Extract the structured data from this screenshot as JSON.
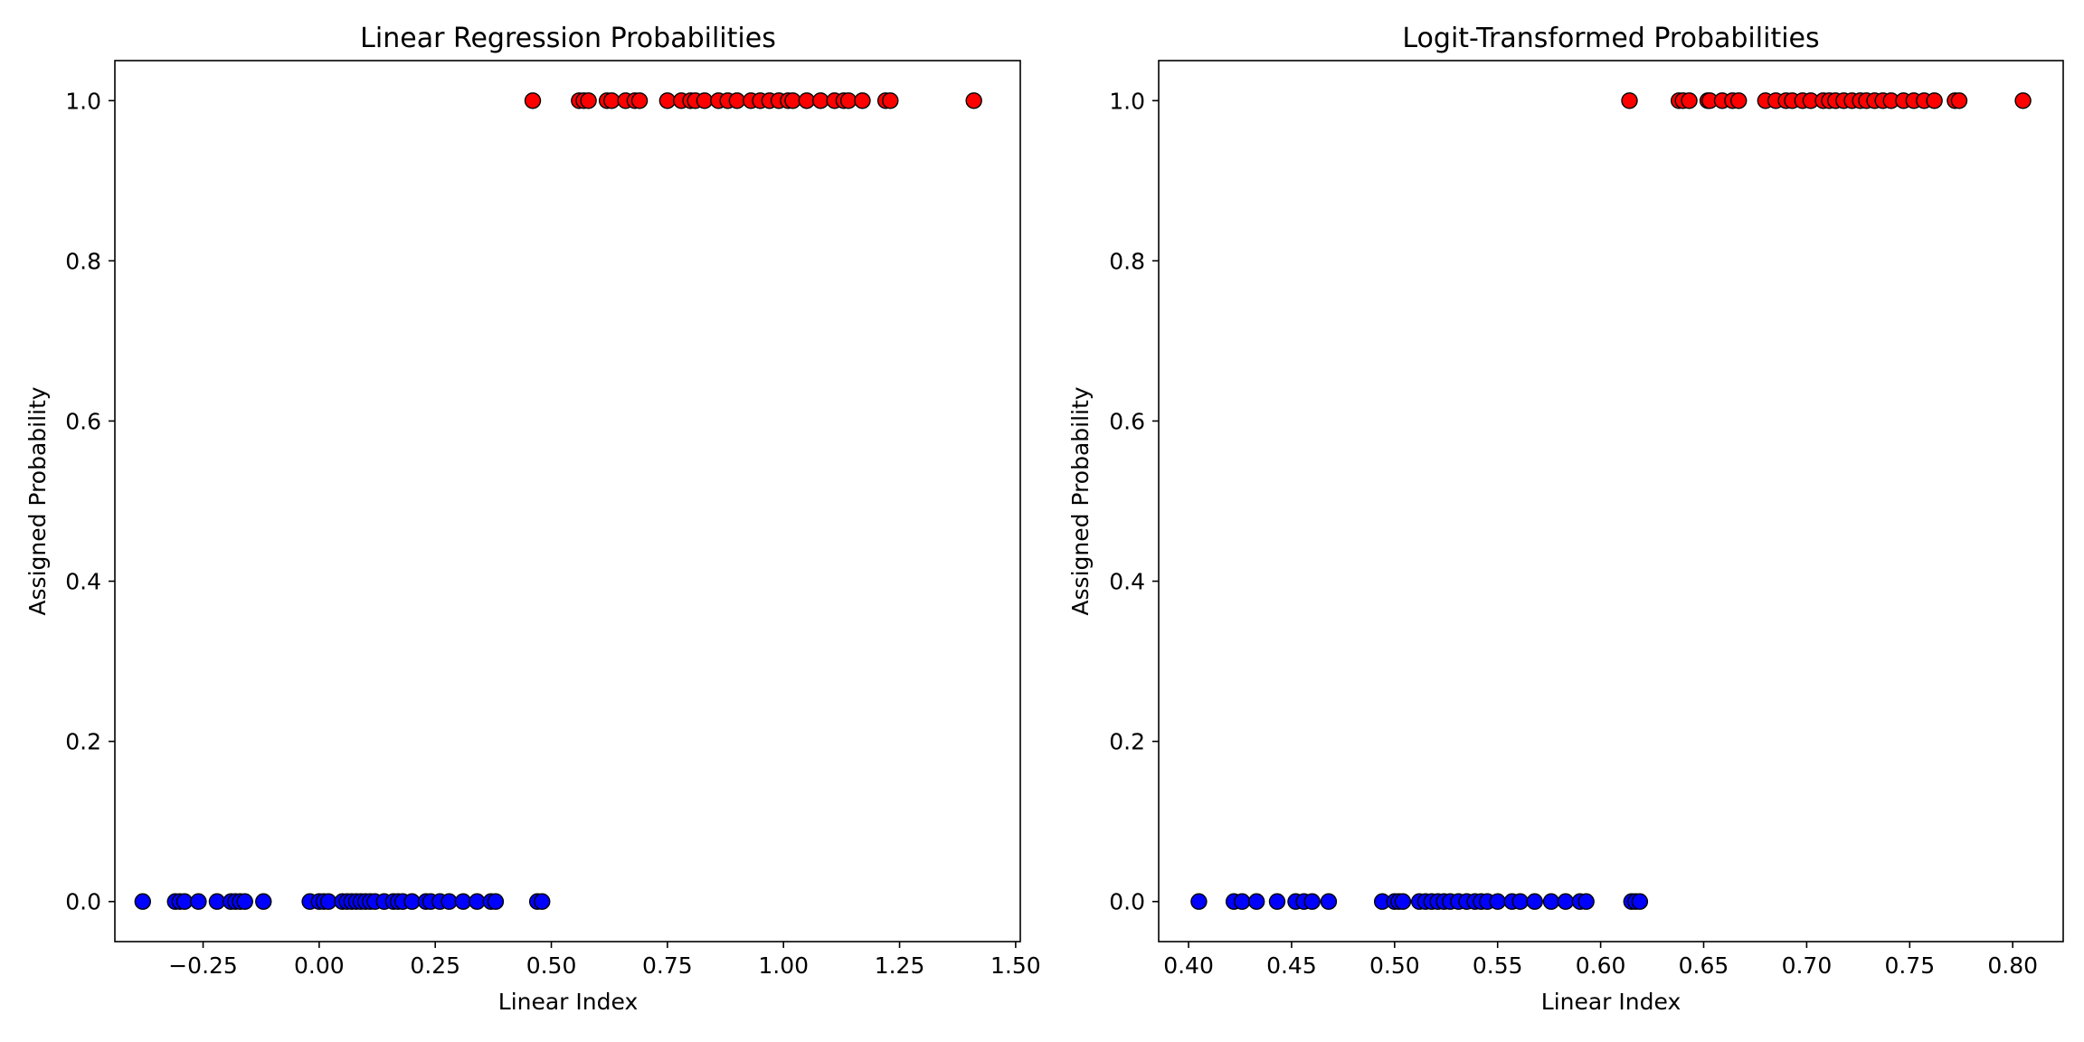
{
  "chart_data": [
    {
      "type": "scatter",
      "title": "Linear Regression Probabilities",
      "xlabel": "Linear Index",
      "ylabel": "Assigned Probability",
      "xlim": [
        -0.44,
        1.51
      ],
      "ylim": [
        -0.05,
        1.05
      ],
      "xticks": [
        -0.25,
        0.0,
        0.25,
        0.5,
        0.75,
        1.0,
        1.25,
        1.5
      ],
      "xtick_labels": [
        "−0.25",
        "0.00",
        "0.25",
        "0.50",
        "0.75",
        "1.00",
        "1.25",
        "1.50"
      ],
      "yticks": [
        0.0,
        0.2,
        0.4,
        0.6,
        0.8,
        1.0
      ],
      "ytick_labels": [
        "0.0",
        "0.2",
        "0.4",
        "0.6",
        "0.8",
        "1.0"
      ],
      "grid": false,
      "colors": {
        "class_0": "#0000ff",
        "class_1": "#ff0000",
        "edge": "#000000"
      },
      "series": [
        {
          "y": 0,
          "x": [
            -0.38,
            -0.31,
            -0.3,
            -0.29,
            -0.26,
            -0.22,
            -0.19,
            -0.18,
            -0.17,
            -0.16,
            -0.12,
            -0.02,
            0.0,
            0.01,
            0.02,
            0.05,
            0.06,
            0.07,
            0.08,
            0.09,
            0.1,
            0.11,
            0.12,
            0.14,
            0.16,
            0.17,
            0.18,
            0.2,
            0.23,
            0.24,
            0.26,
            0.28,
            0.31,
            0.34,
            0.37,
            0.38,
            0.47,
            0.48
          ]
        },
        {
          "y": 1,
          "x": [
            0.46,
            0.56,
            0.57,
            0.58,
            0.62,
            0.63,
            0.66,
            0.68,
            0.69,
            0.75,
            0.78,
            0.8,
            0.81,
            0.83,
            0.86,
            0.88,
            0.9,
            0.93,
            0.95,
            0.97,
            0.99,
            1.01,
            1.02,
            1.05,
            1.08,
            1.11,
            1.13,
            1.14,
            1.17,
            1.22,
            1.23,
            1.41
          ]
        }
      ]
    },
    {
      "type": "scatter",
      "title": "Logit-Transformed Probabilities",
      "xlabel": "Linear Index",
      "ylabel": "Assigned Probability",
      "xlim": [
        0.3855,
        0.8245
      ],
      "ylim": [
        -0.05,
        1.05
      ],
      "xticks": [
        0.4,
        0.45,
        0.5,
        0.55,
        0.6,
        0.65,
        0.7,
        0.75,
        0.8
      ],
      "xtick_labels": [
        "0.40",
        "0.45",
        "0.50",
        "0.55",
        "0.60",
        "0.65",
        "0.70",
        "0.75",
        "0.80"
      ],
      "yticks": [
        0.0,
        0.2,
        0.4,
        0.6,
        0.8,
        1.0
      ],
      "ytick_labels": [
        "0.0",
        "0.2",
        "0.4",
        "0.6",
        "0.8",
        "1.0"
      ],
      "grid": false,
      "colors": {
        "class_0": "#0000ff",
        "class_1": "#ff0000",
        "edge": "#000000"
      },
      "series": [
        {
          "y": 0,
          "x": [
            0.405,
            0.422,
            0.426,
            0.433,
            0.443,
            0.452,
            0.456,
            0.46,
            0.468,
            0.494,
            0.5,
            0.502,
            0.504,
            0.512,
            0.515,
            0.518,
            0.521,
            0.524,
            0.527,
            0.531,
            0.535,
            0.539,
            0.542,
            0.545,
            0.55,
            0.557,
            0.561,
            0.568,
            0.576,
            0.583,
            0.59,
            0.593,
            0.615,
            0.617,
            0.619
          ]
        },
        {
          "y": 1,
          "x": [
            0.614,
            0.638,
            0.64,
            0.643,
            0.652,
            0.653,
            0.659,
            0.664,
            0.667,
            0.68,
            0.685,
            0.69,
            0.693,
            0.698,
            0.702,
            0.708,
            0.711,
            0.714,
            0.718,
            0.722,
            0.726,
            0.729,
            0.733,
            0.737,
            0.741,
            0.747,
            0.752,
            0.757,
            0.762,
            0.772,
            0.774,
            0.805
          ]
        }
      ]
    }
  ]
}
